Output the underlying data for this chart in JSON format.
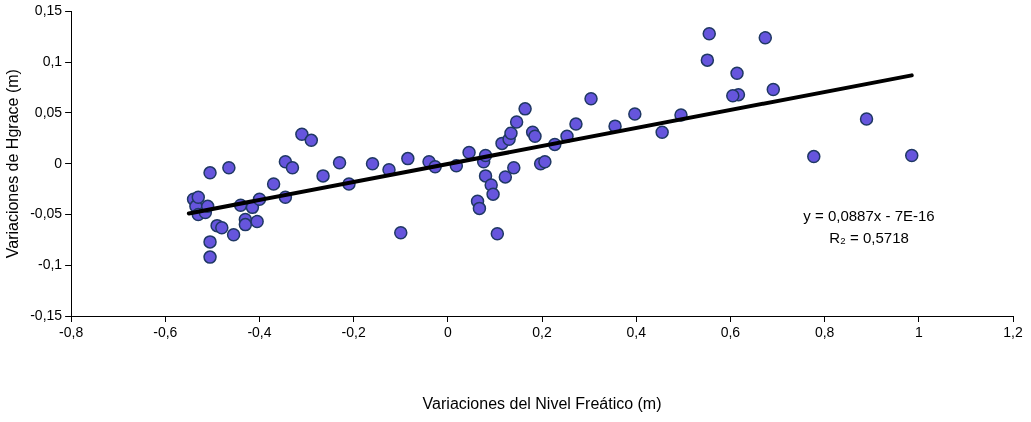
{
  "chart_data": {
    "type": "scatter",
    "xlabel": "Variaciones del Nivel Freático (m)",
    "ylabel": "Variaciones de Hgrace (m)",
    "xlim": [
      -0.8,
      1.2
    ],
    "xticks": [
      {
        "value": -0.8,
        "label": "-0,8"
      },
      {
        "value": -0.6,
        "label": "-0,6"
      },
      {
        "value": -0.4,
        "label": "-0,4"
      },
      {
        "value": -0.2,
        "label": "-0,2"
      },
      0,
      {
        "value": 0.2,
        "label": "0,2"
      },
      {
        "value": 0.4,
        "label": "0,4"
      },
      {
        "value": 0.6,
        "label": "0,6"
      },
      {
        "value": 0.8,
        "label": "0,8"
      },
      1,
      {
        "value": 1.2,
        "label": "1,2"
      }
    ],
    "ylim": [
      -0.15,
      0.15
    ],
    "yticks": [
      {
        "value": -0.15,
        "label": "-0,15"
      },
      {
        "value": -0.1,
        "label": "-0,1"
      },
      {
        "value": -0.05,
        "label": "-0,05"
      },
      0,
      {
        "value": 0.05,
        "label": "0,05"
      },
      {
        "value": 0.1,
        "label": "0,1"
      },
      {
        "value": 0.15,
        "label": "0,15"
      }
    ],
    "grid": false,
    "legend": false,
    "marker": "circle",
    "series": [
      {
        "type": "scatter",
        "color": "#6655dd",
        "x": [
          -0.54,
          -0.535,
          -0.53,
          -0.53,
          -0.515,
          -0.51,
          -0.505,
          -0.505,
          -0.505,
          -0.49,
          -0.48,
          -0.465,
          -0.455,
          -0.44,
          -0.43,
          -0.43,
          -0.415,
          -0.405,
          -0.4,
          -0.37,
          -0.345,
          -0.345,
          -0.33,
          -0.31,
          -0.29,
          -0.265,
          -0.23,
          -0.21,
          -0.16,
          -0.125,
          -0.1,
          -0.085,
          -0.04,
          -0.027,
          0.018,
          0.045,
          0.076,
          0.08,
          0.08,
          0.092,
          0.096,
          0.063,
          0.067,
          0.105,
          0.122,
          0.14,
          0.115,
          0.13,
          0.134,
          0.146,
          0.164,
          0.18,
          0.185,
          0.197,
          0.206,
          0.227,
          0.253,
          0.272,
          0.304,
          0.355,
          0.397,
          0.455,
          0.495,
          0.555,
          0.551,
          0.674,
          0.614,
          0.617,
          0.605,
          0.691,
          0.777,
          0.889,
          0.985
        ],
        "values": [
          -0.035,
          -0.042,
          -0.05,
          -0.033,
          -0.048,
          -0.042,
          -0.009,
          -0.077,
          -0.092,
          -0.061,
          -0.063,
          -0.004,
          -0.07,
          -0.041,
          -0.055,
          -0.06,
          -0.043,
          -0.057,
          -0.035,
          -0.02,
          0.002,
          -0.033,
          -0.004,
          0.029,
          0.023,
          -0.012,
          0.001,
          -0.02,
          0.0,
          -0.006,
          -0.068,
          0.005,
          0.002,
          -0.003,
          -0.002,
          0.011,
          0.002,
          0.008,
          -0.012,
          -0.021,
          -0.03,
          -0.037,
          -0.044,
          -0.069,
          -0.013,
          -0.004,
          0.02,
          0.024,
          0.03,
          0.041,
          0.054,
          0.031,
          0.027,
          0.0,
          0.002,
          0.019,
          0.027,
          0.039,
          0.064,
          0.037,
          0.049,
          0.031,
          0.048,
          0.128,
          0.102,
          0.124,
          0.089,
          0.068,
          0.067,
          0.073,
          0.007,
          0.044,
          0.008
        ]
      },
      {
        "type": "line",
        "color": "#000000",
        "marker": "none",
        "line_style": "solid",
        "x": [
          -0.55,
          0.985
        ],
        "values": [
          -0.049,
          0.087
        ]
      }
    ],
    "annotations": [
      "y = 0,0887x - 7E-16",
      "R₂ = 0,5718"
    ]
  }
}
